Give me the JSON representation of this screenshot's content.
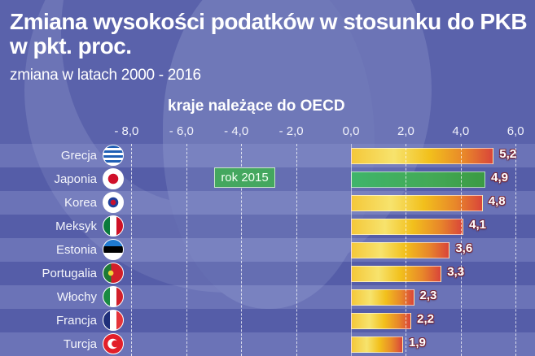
{
  "header": {
    "title_line1": "Zmiana wysokości podatków w stosunku do PKB",
    "title_line2": "w pkt. proc.",
    "subtitle": "zmiana w latach 2000 - 2016"
  },
  "colors": {
    "background": "#5a62ab",
    "bar_gradient_start": "#f4c83a",
    "bar_gradient_end": "#d9453a",
    "highlight_bar": "#43a956",
    "annotation_bg": "#44a75f"
  },
  "annotation": {
    "label": "rok 2015",
    "applies_to": "Japonia"
  },
  "chart_data": {
    "type": "bar",
    "orientation": "horizontal",
    "title": "kraje należące do OECD",
    "xlabel": "",
    "ylabel": "",
    "xlim": [
      -8.0,
      6.0
    ],
    "x_ticks": [
      "- 8,0",
      "- 6,0",
      "- 4,0",
      "- 2,0",
      "0,0",
      "2,0",
      "4,0",
      "6,0"
    ],
    "x_tick_values": [
      -8,
      -6,
      -4,
      -2,
      0,
      2,
      4,
      6
    ],
    "grid": true,
    "legend": null,
    "categories": [
      "Grecja",
      "Japonia",
      "Korea",
      "Meksyk",
      "Estonia",
      "Portugalia",
      "Włochy",
      "Francja",
      "Turcja"
    ],
    "values": [
      5.2,
      4.9,
      4.8,
      4.1,
      3.6,
      3.3,
      2.3,
      2.2,
      1.9
    ],
    "value_labels": [
      "5,2",
      "4,9",
      "4,8",
      "4,1",
      "3,6",
      "3,3",
      "2,3",
      "2,2",
      "1,9"
    ],
    "highlighted": [
      false,
      true,
      false,
      false,
      false,
      false,
      false,
      false,
      false
    ],
    "annotations": [
      {
        "text": "rok 2015",
        "category": "Japonia"
      }
    ]
  }
}
